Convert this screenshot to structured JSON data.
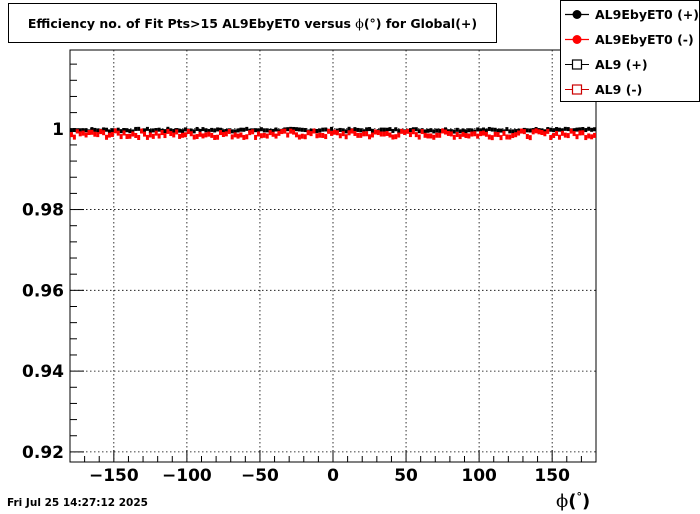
{
  "chart_data": {
    "type": "scatter",
    "title_text": "Efficiency no. of Fit Pts>15 AL9EbyET0 versus",
    "title_var": "ϕ",
    "title_unit": "(°)",
    "title_suffix": "for Global(+)",
    "xlabel_var": "ϕ",
    "xlabel_unit": "°",
    "xlim": [
      -180,
      180
    ],
    "ylim": [
      0.9175,
      1.0195
    ],
    "xticks": [
      -150,
      -100,
      -50,
      0,
      50,
      100,
      150
    ],
    "xtick_labels": [
      "−150",
      "−100",
      "−50",
      "0",
      "50",
      "100",
      "150"
    ],
    "yticks": [
      0.92,
      0.94,
      0.96,
      0.98,
      1.0
    ],
    "ytick_labels": [
      "0.92",
      "0.94",
      "0.96",
      "0.98",
      "1"
    ],
    "grid": true,
    "legend_position": "top-right",
    "x_range": [
      -180,
      180
    ],
    "series": [
      {
        "name": "AL9EbyET0 (+)",
        "color": "#000000",
        "marker": "filled-circle",
        "mean": 0.9997,
        "band": [
          0.9993,
          1.0
        ]
      },
      {
        "name": "AL9EbyET0 (-)",
        "color": "#ff0000",
        "marker": "filled-circle",
        "mean": 0.9988,
        "band": [
          0.9978,
          0.9995
        ]
      },
      {
        "name": "AL9 (+)",
        "color": "#000000",
        "marker": "open-square"
      },
      {
        "name": "AL9 (-)",
        "color": "#cc0000",
        "marker": "open-square"
      }
    ]
  },
  "footer": {
    "date": "Fri Jul 25 14:27:12 2025"
  }
}
